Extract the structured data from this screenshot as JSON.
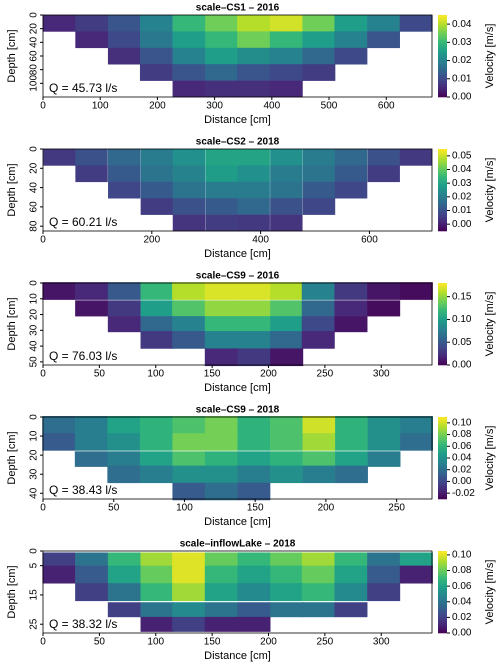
{
  "chart_data": [
    {
      "type": "heatmap",
      "title": "scale–CS1 – 2016",
      "x_label": "Distance [cm]",
      "y_label": "Depth [cm]",
      "colorbar_label": "Velocity [m/s]",
      "annotation": "Q = 45.73 l/s",
      "colormap": "viridis",
      "x": [
        28,
        85,
        142,
        198,
        255,
        312,
        368,
        425,
        482,
        538,
        595,
        652
      ],
      "y": [
        12,
        36,
        60,
        84,
        108
      ],
      "z": [
        [
          0.005,
          0.008,
          0.012,
          0.02,
          0.03,
          0.035,
          0.04,
          0.042,
          0.035,
          0.025,
          0.02,
          0.01
        ],
        [
          null,
          0.005,
          0.01,
          0.018,
          0.025,
          0.03,
          0.035,
          0.03,
          0.025,
          0.02,
          0.012,
          null
        ],
        [
          null,
          null,
          0.006,
          0.012,
          0.02,
          0.025,
          0.022,
          0.02,
          0.015,
          0.01,
          null,
          null
        ],
        [
          null,
          null,
          null,
          0.008,
          0.012,
          0.015,
          0.012,
          0.01,
          0.008,
          null,
          null,
          null
        ],
        [
          null,
          null,
          null,
          null,
          0.005,
          0.006,
          0.006,
          0.005,
          null,
          null,
          null,
          null
        ]
      ],
      "xlim": [
        0,
        680
      ],
      "ylim": [
        0,
        120
      ],
      "xticks": [
        0,
        100,
        200,
        300,
        400,
        500,
        600
      ],
      "yticks": [
        0,
        20,
        40,
        60,
        80,
        100
      ],
      "clim": [
        0,
        0.045
      ],
      "cticks": [
        {
          "value": 0,
          "label": "0.00"
        },
        {
          "value": 0.01,
          "label": "0.01"
        },
        {
          "value": 0.02,
          "label": "0.02"
        },
        {
          "value": 0.03,
          "label": "0.03"
        },
        {
          "value": 0.04,
          "label": "0.04"
        }
      ]
    },
    {
      "type": "heatmap",
      "title": "scale–CS2 – 2018",
      "x_label": "Distance [cm]",
      "y_label": "Depth [cm]",
      "colorbar_label": "Velocity [m/s]",
      "annotation": "Q = 60.21 l/s",
      "colormap": "viridis",
      "x": [
        30,
        89,
        149,
        209,
        268,
        328,
        387,
        447,
        507,
        566,
        626,
        685
      ],
      "y": [
        8.5,
        25.5,
        42.5,
        59.5,
        76.5
      ],
      "z": [
        [
          0.005,
          0.01,
          0.015,
          0.02,
          0.025,
          0.03,
          0.03,
          0.025,
          0.02,
          0.015,
          0.01,
          0.005
        ],
        [
          null,
          0.006,
          0.012,
          0.018,
          0.022,
          0.028,
          0.025,
          0.02,
          0.018,
          0.012,
          0.006,
          null
        ],
        [
          null,
          null,
          0.008,
          0.012,
          0.018,
          0.02,
          0.02,
          0.018,
          0.012,
          0.008,
          null,
          null
        ],
        [
          null,
          null,
          null,
          0.006,
          0.01,
          0.012,
          0.015,
          0.01,
          0.008,
          null,
          null,
          null
        ],
        [
          null,
          null,
          null,
          null,
          0.004,
          0.006,
          0.005,
          0.004,
          null,
          null,
          null,
          null
        ]
      ],
      "xlim": [
        0,
        715
      ],
      "ylim": [
        0,
        85
      ],
      "xticks": [
        0,
        200,
        400,
        600
      ],
      "yticks": [
        0,
        20,
        40,
        60,
        80
      ],
      "clim": [
        -0.005,
        0.055
      ],
      "cticks": [
        {
          "value": 0,
          "label": "0.00"
        },
        {
          "value": 0.01,
          "label": "0.01"
        },
        {
          "value": 0.02,
          "label": "0.02"
        },
        {
          "value": 0.03,
          "label": "0.03"
        },
        {
          "value": 0.04,
          "label": "0.04"
        },
        {
          "value": 0.05,
          "label": "0.05"
        }
      ]
    },
    {
      "type": "heatmap",
      "title": "scale–CS9 – 2016",
      "x_label": "Distance [cm]",
      "y_label": "Depth [cm]",
      "colorbar_label": "Velocity [m/s]",
      "annotation": "Q = 76.03 l/s",
      "colormap": "viridis",
      "x": [
        14,
        43,
        72,
        101,
        129,
        158,
        187,
        216,
        244,
        273,
        302,
        331
      ],
      "y": [
        5,
        16,
        26,
        36,
        47
      ],
      "z": [
        [
          0.01,
          0.02,
          0.05,
          0.12,
          0.16,
          0.17,
          0.17,
          0.16,
          0.08,
          0.03,
          0.01,
          0.005
        ],
        [
          null,
          0.01,
          0.03,
          0.1,
          0.13,
          0.15,
          0.15,
          0.13,
          0.06,
          0.02,
          0.005,
          null
        ],
        [
          null,
          null,
          0.02,
          0.06,
          0.08,
          0.12,
          0.12,
          0.1,
          0.04,
          0.01,
          null,
          null
        ],
        [
          null,
          null,
          null,
          0.03,
          0.05,
          0.08,
          0.08,
          0.06,
          0.02,
          null,
          null,
          null
        ],
        [
          null,
          null,
          null,
          null,
          null,
          0.02,
          0.03,
          0.01,
          null,
          null,
          null,
          null
        ]
      ],
      "xlim": [
        0,
        345
      ],
      "ylim": [
        0,
        52
      ],
      "xticks": [
        0,
        50,
        100,
        150,
        200,
        250,
        300
      ],
      "yticks": [
        0,
        10,
        20,
        30,
        40,
        50
      ],
      "clim": [
        0,
        0.18
      ],
      "cticks": [
        {
          "value": 0,
          "label": "0.00"
        },
        {
          "value": 0.05,
          "label": "0.05"
        },
        {
          "value": 0.1,
          "label": "0.10"
        },
        {
          "value": 0.15,
          "label": "0.15"
        }
      ]
    },
    {
      "type": "heatmap",
      "title": "scale–CS9 – 2018",
      "x_label": "Distance [cm]",
      "y_label": "Depth [cm]",
      "colorbar_label": "Velocity [m/s]",
      "annotation": "Q = 38.43 l/s",
      "colormap": "viridis",
      "x": [
        11,
        34,
        57,
        80,
        103,
        126,
        149,
        172,
        195,
        218,
        241,
        264
      ],
      "y": [
        4,
        13,
        22,
        30,
        39
      ],
      "z": [
        [
          0.02,
          0.03,
          0.05,
          0.06,
          0.07,
          0.08,
          0.06,
          0.07,
          0.1,
          0.06,
          0.04,
          0.03
        ],
        [
          0.01,
          0.03,
          0.04,
          0.06,
          0.08,
          0.08,
          0.06,
          0.07,
          0.09,
          0.06,
          0.04,
          0.02
        ],
        [
          null,
          0.02,
          0.03,
          0.05,
          0.07,
          0.06,
          0.05,
          0.06,
          0.07,
          0.05,
          0.03,
          null
        ],
        [
          null,
          null,
          0.02,
          0.03,
          0.04,
          0.04,
          0.03,
          0.04,
          0.03,
          0.02,
          null,
          null
        ],
        [
          null,
          null,
          null,
          null,
          0.01,
          0.02,
          0.01,
          null,
          null,
          null,
          null,
          null
        ]
      ],
      "xlim": [
        0,
        275
      ],
      "ylim": [
        0,
        43
      ],
      "xticks": [
        0,
        50,
        100,
        150,
        200,
        250
      ],
      "yticks": [
        0,
        10,
        20,
        30,
        40
      ],
      "clim": [
        -0.03,
        0.11
      ],
      "cticks": [
        {
          "value": -0.02,
          "label": "-0.02"
        },
        {
          "value": 0,
          "label": "0.00"
        },
        {
          "value": 0.02,
          "label": "0.02"
        },
        {
          "value": 0.04,
          "label": "0.04"
        },
        {
          "value": 0.06,
          "label": "0.06"
        },
        {
          "value": 0.08,
          "label": "0.08"
        },
        {
          "value": 0.1,
          "label": "0.10"
        }
      ]
    },
    {
      "type": "heatmap",
      "title": "scale–inflowLake – 2018",
      "x_label": "Distance [cm]",
      "y_label": "Depth [cm]",
      "colorbar_label": "Velocity [m/s]",
      "annotation": "Q = 38.32 l/s",
      "colormap": "viridis",
      "x": [
        14,
        43,
        72,
        101,
        129,
        158,
        187,
        216,
        244,
        273,
        302,
        331
      ],
      "y": [
        3,
        8,
        14,
        20,
        25
      ],
      "z": [
        [
          0.02,
          0.04,
          0.07,
          0.09,
          0.1,
          0.08,
          0.07,
          0.08,
          0.09,
          0.07,
          0.04,
          0.06
        ],
        [
          0.01,
          0.03,
          0.06,
          0.08,
          0.1,
          0.07,
          0.06,
          0.07,
          0.08,
          0.06,
          0.03,
          0.01
        ],
        [
          null,
          0.02,
          0.04,
          0.07,
          0.09,
          0.06,
          0.05,
          0.06,
          0.07,
          0.05,
          0.02,
          null
        ],
        [
          null,
          null,
          0.02,
          0.04,
          0.05,
          0.04,
          0.03,
          0.04,
          0.04,
          0.02,
          null,
          null
        ],
        [
          null,
          null,
          null,
          0.01,
          0.02,
          0.01,
          0.01,
          null,
          null,
          null,
          null,
          null
        ]
      ],
      "xlim": [
        0,
        345
      ],
      "ylim": [
        0,
        28
      ],
      "xticks": [
        0,
        50,
        100,
        150,
        200,
        250,
        300
      ],
      "yticks": [
        0,
        5,
        15,
        25
      ],
      "clim": [
        0,
        0.105
      ],
      "cticks": [
        {
          "value": 0,
          "label": "0.00"
        },
        {
          "value": 0.02,
          "label": "0.02"
        },
        {
          "value": 0.04,
          "label": "0.04"
        },
        {
          "value": 0.06,
          "label": "0.06"
        },
        {
          "value": 0.08,
          "label": "0.08"
        },
        {
          "value": 0.1,
          "label": "0.10"
        }
      ]
    }
  ]
}
